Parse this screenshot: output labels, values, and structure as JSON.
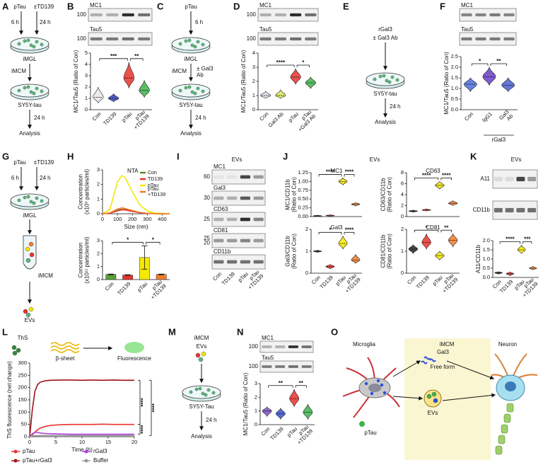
{
  "panels": {
    "A": {
      "letter": "A",
      "labels": [
        "pTau",
        "±TD139",
        "6 h",
        "24 h",
        "iMGL",
        "iMCM",
        "SY5Y-tau",
        "24 h",
        "Analysis"
      ]
    },
    "B": {
      "letter": "B",
      "blot": [
        {
          "name": "MC1",
          "markers": [
            100
          ]
        },
        {
          "name": "Tau5",
          "markers": [
            100
          ]
        }
      ],
      "chart": {
        "type": "violin",
        "ylabel": "MC1/Tau5 (Ratio of Con)",
        "categories": [
          "Con",
          "TD139",
          "pTau",
          "pTau\n+TD139"
        ],
        "values": [
          1.1,
          1.0,
          2.8,
          1.7
        ],
        "ranges": [
          [
            0.6,
            2.0
          ],
          [
            0.7,
            1.4
          ],
          [
            1.9,
            4.2
          ],
          [
            1.1,
            2.6
          ]
        ],
        "colors": [
          "#e6e6e6",
          "#2b3fbf",
          "#e8322b",
          "#3cb44b"
        ],
        "ylim": [
          0,
          5
        ],
        "yticks": [
          0,
          1,
          2,
          3,
          4,
          5
        ],
        "significance": [
          {
            "from": 0,
            "to": 2,
            "label": "***"
          },
          {
            "from": 2,
            "to": 3,
            "label": "**"
          }
        ]
      }
    },
    "C": {
      "letter": "C",
      "labels": [
        "pTau",
        "6 h",
        "iMGL",
        "iMCM",
        "± Gal3\nAb",
        "SY5Y-tau",
        "24 h",
        "Analysis"
      ]
    },
    "D": {
      "letter": "D",
      "blot": [
        {
          "name": "MC1",
          "markers": [
            100
          ]
        },
        {
          "name": "Tau5",
          "markers": [
            100
          ]
        }
      ],
      "chart": {
        "type": "violin",
        "ylabel": "MC1/Tau5 (Ratio of Con)",
        "categories": [
          "Con",
          "Gal3 Ab",
          "pTau",
          "pTau\n+Gal3 Ab"
        ],
        "values": [
          1.0,
          1.0,
          2.3,
          1.9
        ],
        "ranges": [
          [
            0.8,
            1.3
          ],
          [
            0.8,
            1.4
          ],
          [
            1.8,
            2.9
          ],
          [
            1.5,
            2.3
          ]
        ],
        "colors": [
          "#dcdcf0",
          "#d8e85a",
          "#e8322b",
          "#3cb44b"
        ],
        "ylim": [
          0,
          4
        ],
        "yticks": [
          0,
          1,
          2,
          3,
          4
        ],
        "significance": [
          {
            "from": 0,
            "to": 2,
            "label": "****"
          },
          {
            "from": 2,
            "to": 3,
            "label": "*"
          }
        ]
      }
    },
    "E": {
      "letter": "E",
      "labels": [
        "rGal3",
        "± Gal3 Ab",
        "SY5Y-tau",
        "24 h",
        "Analysis"
      ]
    },
    "F": {
      "letter": "F",
      "blot": [
        {
          "name": "MC1"
        },
        {
          "name": "Tau5"
        }
      ],
      "chart": {
        "type": "violin",
        "ylabel": "MC1/Tau5 (Ratio of Con)",
        "categories": [
          "Con",
          "IgG1",
          "Gal3\nAb"
        ],
        "group_label": {
          "text": "rGal3",
          "from": 1,
          "to": 2
        },
        "values": [
          1.2,
          1.55,
          1.15
        ],
        "ranges": [
          [
            0.85,
            1.5
          ],
          [
            1.15,
            2.0
          ],
          [
            0.85,
            1.5
          ]
        ],
        "colors": [
          "#4a6fd8",
          "#6a3fc8",
          "#4a5fd0"
        ],
        "ylim": [
          0,
          2.5
        ],
        "yticks": [
          {
            "value": 0,
            "label": "0.0"
          },
          0.5,
          {
            "value": 1,
            "label": "1.0"
          },
          1.5,
          {
            "value": 2,
            "label": "2.0"
          },
          2.5
        ],
        "significance": [
          {
            "from": 0,
            "to": 1,
            "label": "*"
          },
          {
            "from": 1,
            "to": 2,
            "label": "**"
          }
        ]
      }
    },
    "G": {
      "letter": "G",
      "labels": [
        "pTau",
        "±TD139",
        "6 h",
        "24 h",
        "iMGL",
        "iMCM",
        "EVs"
      ]
    },
    "H": {
      "letter": "H",
      "nta": {
        "type": "line",
        "title": "NTA",
        "xlabel": "Size (nm)",
        "ylabel": "Concentration\n(x10⁹ particles/ml)",
        "x": [
          0,
          50,
          100,
          130,
          150,
          200,
          250,
          300,
          350,
          400,
          450
        ],
        "series": [
          {
            "name": "Con",
            "color": "#5b8e23",
            "values": [
              0,
              0.05,
              0.25,
              0.3,
              0.28,
              0.18,
              0.08,
              0.03,
              0.01,
              0,
              0
            ]
          },
          {
            "name": "TD139",
            "color": "#e8322b",
            "values": [
              0,
              0.04,
              0.2,
              0.27,
              0.26,
              0.16,
              0.07,
              0.02,
              0.01,
              0,
              0
            ]
          },
          {
            "name": "pTau",
            "color": "#f4e800",
            "values": [
              0,
              0.3,
              2.2,
              2.6,
              2.5,
              1.5,
              0.6,
              0.2,
              0.05,
              0.02,
              0
            ]
          },
          {
            "name": "pTau\n+TD139",
            "color": "#f07c2a",
            "values": [
              0,
              0.06,
              0.32,
              0.4,
              0.36,
              0.22,
              0.09,
              0.03,
              0.01,
              0,
              0
            ]
          }
        ],
        "xlim": [
          0,
          450
        ],
        "xticks": [
          0,
          100,
          200,
          300,
          400
        ],
        "ylim": [
          0,
          3
        ],
        "yticks": [
          0,
          1,
          2,
          3
        ]
      },
      "bar": {
        "type": "bar",
        "ylabel": "Concentration\n(x10¹¹ particles/ml)",
        "categories": [
          "Con",
          "TD139",
          "pTau",
          "pTau\n+TD139"
        ],
        "values": [
          0.4,
          0.35,
          1.7,
          0.4
        ],
        "errors": [
          0.03,
          0.03,
          0.9,
          0.03
        ],
        "colors": [
          "#5b9e3a",
          "#e8322b",
          "#f4e800",
          "#f07c2a"
        ],
        "ylim": [
          0,
          3
        ],
        "yticks": [
          0,
          1,
          2,
          3
        ],
        "significance": [
          {
            "from": 0,
            "to": 2,
            "label": "*"
          },
          {
            "from": 2,
            "to": 3,
            "label": "*"
          }
        ]
      }
    },
    "I": {
      "letter": "I",
      "header": "EVs",
      "blot": [
        {
          "name": "MC1",
          "markers": [
            60
          ]
        },
        {
          "name": "Gal3",
          "markers": [
            30
          ]
        },
        {
          "name": "CD63",
          "markers": [
            25
          ]
        },
        {
          "name": "CD81",
          "markers": [
            25,
            20
          ]
        },
        {
          "name": "CD11b"
        }
      ],
      "categories": [
        "Con",
        "TD139",
        "pTau",
        "pTau\n+TD139"
      ]
    },
    "J": {
      "letter": "J",
      "header": "EVs",
      "categories": [
        "Con",
        "TD139",
        "pTau",
        "pTau\n+TD139"
      ],
      "charts": [
        {
          "type": "violin",
          "title": "MC1",
          "ylabel": "MC1/CD11b\n(Ratio of Con)",
          "values": [
            0.02,
            0.03,
            1.0,
            0.35
          ],
          "ranges": [
            [
              0.01,
              0.04
            ],
            [
              0.01,
              0.05
            ],
            [
              0.9,
              1.1
            ],
            [
              0.3,
              0.4
            ]
          ],
          "colors": [
            "#222222",
            "#e8322b",
            "#f4e800",
            "#f07c2a"
          ],
          "ylim": [
            0,
            1.25
          ],
          "yticks": [
            {
              "value": 0,
              "label": "0.00"
            },
            0.25,
            {
              "value": 0.5,
              "label": "0.50"
            },
            0.75,
            {
              "value": 1,
              "label": "1.00"
            },
            1.25
          ],
          "significance": [
            {
              "from": 0,
              "to": 2,
              "label": "****"
            },
            {
              "from": 2,
              "to": 3,
              "label": "****"
            }
          ]
        },
        {
          "type": "violin",
          "title": "CD63",
          "ylabel": "CD63/CD11b\n(Ratio of Con)",
          "values": [
            1.0,
            1.2,
            5.7,
            2.4
          ],
          "ranges": [
            [
              0.8,
              1.2
            ],
            [
              1.0,
              1.4
            ],
            [
              5.0,
              6.4
            ],
            [
              2.0,
              2.9
            ]
          ],
          "colors": [
            "#222222",
            "#e8322b",
            "#f4e800",
            "#f07c2a"
          ],
          "ylim": [
            0,
            8
          ],
          "yticks": [
            0,
            2,
            4,
            6,
            8
          ],
          "significance": [
            {
              "from": 0,
              "to": 2,
              "label": "****"
            },
            {
              "from": 2,
              "to": 3,
              "label": "****"
            }
          ]
        },
        {
          "type": "violin",
          "title": "Gal3",
          "ylabel": "Gal3/CD11b\n(Ratio of Con)",
          "values": [
            1.0,
            0.3,
            1.35,
            0.6
          ],
          "ranges": [
            [
              0.95,
              1.05
            ],
            [
              0.2,
              0.4
            ],
            [
              1.1,
              1.7
            ],
            [
              0.45,
              0.85
            ]
          ],
          "colors": [
            "#222222",
            "#e8322b",
            "#f4e800",
            "#f07c2a"
          ],
          "ylim": [
            0,
            2
          ],
          "yticks": [
            0,
            1,
            2
          ],
          "significance": [
            {
              "from": 0,
              "to": 2,
              "label": "*"
            },
            {
              "from": 2,
              "to": 3,
              "label": "****"
            }
          ]
        },
        {
          "type": "violin",
          "title": "CD81",
          "ylabel": "CD81/CD11b\n(Ratio of Con)",
          "values": [
            1.1,
            1.4,
            0.8,
            1.5
          ],
          "ranges": [
            [
              0.9,
              1.3
            ],
            [
              1.1,
              1.8
            ],
            [
              0.6,
              1.0
            ],
            [
              1.2,
              1.8
            ]
          ],
          "colors": [
            "#222222",
            "#e8322b",
            "#f4e800",
            "#f07c2a"
          ],
          "ylim": [
            0,
            2
          ],
          "yticks": [
            0,
            1,
            2
          ],
          "significance": [
            {
              "from": 0,
              "to": 2,
              "label": "*"
            },
            {
              "from": 2,
              "to": 3,
              "label": "**"
            }
          ]
        }
      ]
    },
    "K": {
      "letter": "K",
      "header": "EVs",
      "blot": [
        {
          "name": "A11"
        },
        {
          "name": "CD11b"
        }
      ],
      "chart": {
        "type": "violin",
        "ylabel": "A11/CD11b",
        "categories": [
          "Con",
          "TD139",
          "pTau",
          "pTau\n+TD139"
        ],
        "values": [
          0.25,
          0.2,
          1.5,
          0.5
        ],
        "ranges": [
          [
            0.18,
            0.32
          ],
          [
            0.1,
            0.3
          ],
          [
            1.3,
            1.75
          ],
          [
            0.42,
            0.6
          ]
        ],
        "colors": [
          "#222222",
          "#e8322b",
          "#f4e800",
          "#f07c2a"
        ],
        "ylim": [
          0,
          2
        ],
        "yticks": [
          {
            "value": 0,
            "label": "0.0"
          },
          0.5,
          {
            "value": 1,
            "label": "1.0"
          },
          1.5,
          {
            "value": 2,
            "label": "2.0"
          }
        ],
        "significance": [
          {
            "from": 0,
            "to": 2,
            "label": "****"
          },
          {
            "from": 2,
            "to": 3,
            "label": "***"
          }
        ]
      }
    },
    "L": {
      "letter": "L",
      "labels": [
        "ThS",
        "β-sheet",
        "Fluorescence"
      ],
      "chart": {
        "type": "line",
        "xlabel": "Time (h)",
        "ylabel": "ThS fluorescence (net change)",
        "x": [
          0,
          0.5,
          1,
          1.5,
          2,
          3,
          4,
          6,
          8,
          10,
          12,
          14,
          16,
          18,
          20
        ],
        "series": [
          {
            "name": "pTau",
            "color": "#e8322b",
            "values": [
              0,
              8,
              18,
              28,
              35,
              42,
              46,
              49,
              50,
              50,
              50,
              51,
              50,
              50,
              50
            ]
          },
          {
            "name": "pTau+rGal3",
            "color": "#a01218",
            "values": [
              0,
              110,
              185,
              212,
              222,
              228,
              230,
              231,
              231,
              230,
              231,
              230,
              231,
              230,
              230
            ]
          },
          {
            "name": "rGal3",
            "color": "#b03fe0",
            "values": [
              0,
              12,
              18,
              17,
              15,
              13,
              12,
              11,
              10,
              10,
              10,
              10,
              10,
              10,
              10
            ]
          },
          {
            "name": "Buffer",
            "color": "#9a9a9a",
            "values": [
              0,
              3,
              4,
              4,
              5,
              5,
              5,
              5,
              5,
              5,
              5,
              5,
              5,
              5,
              5
            ]
          }
        ],
        "xlim": [
          0,
          20
        ],
        "xticks": [
          0,
          5,
          10,
          15,
          20
        ],
        "ylim": [
          0,
          300
        ],
        "yticks": [
          0,
          50,
          100,
          150,
          200,
          250,
          300
        ],
        "significance": [
          {
            "from": 1,
            "to": 0,
            "label": "****"
          },
          {
            "from": 1,
            "to": 3,
            "label": "****"
          },
          {
            "from": 0,
            "to": 2,
            "label": "****"
          }
        ]
      }
    },
    "M": {
      "letter": "M",
      "labels": [
        "iMCM",
        "EVs",
        "SY5Y-Tau",
        "24 h",
        "Analysis"
      ]
    },
    "N": {
      "letter": "N",
      "blot": [
        {
          "name": "MC1",
          "markers": [
            100
          ]
        },
        {
          "name": "Tau5",
          "markers": [
            100
          ]
        }
      ],
      "chart": {
        "type": "violin",
        "ylabel": "MC1/Tau5 (Ratio of Con)",
        "categories": [
          "Con",
          "TD139",
          "pTau",
          "pTau\n+TD139"
        ],
        "values": [
          1.0,
          0.8,
          1.9,
          0.9
        ],
        "ranges": [
          [
            0.6,
            1.3
          ],
          [
            0.4,
            1.2
          ],
          [
            1.3,
            2.6
          ],
          [
            0.4,
            1.5
          ]
        ],
        "colors": [
          "#7d4fc8",
          "#3a4fd0",
          "#e8322b",
          "#3cb44b"
        ],
        "ylim": [
          0,
          3
        ],
        "yticks": [
          0,
          1,
          2,
          3
        ],
        "significance": [
          {
            "from": 0,
            "to": 2,
            "label": "**"
          },
          {
            "from": 2,
            "to": 3,
            "label": "**"
          }
        ]
      }
    },
    "O": {
      "letter": "O",
      "labels": [
        "Microglia",
        "iMCM",
        "Gal3",
        "Free form",
        "Neuron",
        "EVs",
        "pTau"
      ]
    }
  }
}
